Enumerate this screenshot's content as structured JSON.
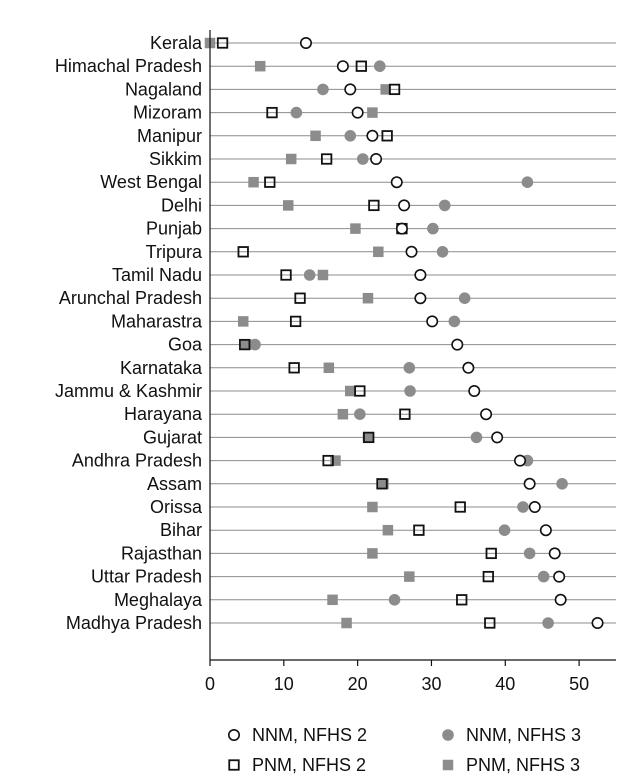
{
  "chart_data": {
    "type": "scatter",
    "xlim": [
      0,
      55
    ],
    "xticks": [
      "0",
      "10",
      "20",
      "30",
      "40",
      "50"
    ],
    "tick_values": [
      0,
      10,
      20,
      30,
      40,
      50
    ],
    "grid": "horizontal row lines",
    "legend_position": "bottom",
    "categories": [
      "Kerala",
      "Himachal Pradesh",
      "Nagaland",
      "Mizoram",
      "Manipur",
      "Sikkim",
      "West Bengal",
      "Delhi",
      "Punjab",
      "Tripura",
      "Tamil Nadu",
      "Arunchal Pradesh",
      "Maharastra",
      "Goa",
      "Karnataka",
      "Jammu & Kashmir",
      "Harayana",
      "Gujarat",
      "Andhra Pradesh",
      "Assam",
      "Orissa",
      "Bihar",
      "Rajasthan",
      "Uttar Pradesh",
      "Meghalaya",
      "Madhya Pradesh"
    ],
    "series": [
      {
        "name": "NNM, NFHS 2",
        "marker": "open-circle",
        "color": "#111111",
        "values": [
          13,
          18,
          19,
          20,
          22,
          22.5,
          25.3,
          26.3,
          26,
          27.3,
          28.5,
          28.5,
          30.1,
          33.5,
          35,
          35.8,
          37.4,
          38.9,
          42,
          43.3,
          44,
          45.5,
          46.7,
          47.3,
          47.5,
          52.5
        ]
      },
      {
        "name": "NNM, NFHS 3",
        "marker": "filled-circle",
        "color": "#8c8c8c",
        "values": [
          13,
          23,
          15.3,
          11.7,
          19,
          20.7,
          43,
          31.8,
          30.2,
          31.5,
          13.5,
          34.5,
          33.1,
          6.1,
          27,
          27.1,
          20.3,
          36.1,
          43,
          47.7,
          42.4,
          39.9,
          43.3,
          45.2,
          25,
          45.8
        ]
      },
      {
        "name": "PNM, NFHS 2",
        "marker": "open-square",
        "color": "#111111",
        "values": [
          1.7,
          20.5,
          25,
          8.4,
          24,
          15.8,
          8.1,
          22.2,
          26,
          4.5,
          10.3,
          12.2,
          11.6,
          4.7,
          11.4,
          20.3,
          26.4,
          21.5,
          16,
          23.3,
          33.9,
          28.3,
          38.1,
          37.7,
          34.1,
          37.9
        ]
      },
      {
        "name": "PNM, NFHS 3",
        "marker": "filled-square",
        "color": "#8c8c8c",
        "values": [
          0,
          6.8,
          23.8,
          22,
          14.3,
          11,
          5.9,
          10.6,
          19.7,
          22.8,
          15.3,
          21.4,
          4.5,
          4.9,
          16.1,
          19,
          18,
          21.4,
          17,
          23.5,
          22,
          24.1,
          22,
          27,
          16.6,
          18.5
        ]
      }
    ]
  }
}
